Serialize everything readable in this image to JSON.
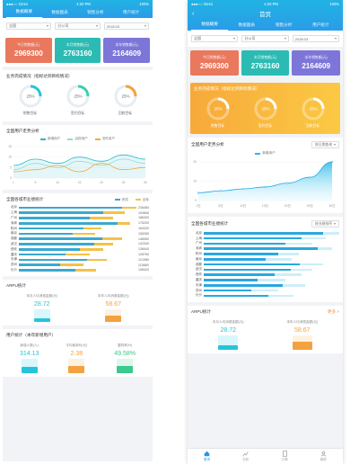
{
  "status": {
    "carrier": "●●●○○ Omni",
    "time": "4:20 PM",
    "battery": "100%"
  },
  "title": "首页",
  "tabs": [
    "数据概要",
    "数据图表",
    "销售分析",
    "用户统计"
  ],
  "filters": {
    "left": [
      "全国",
      "分公司",
      "2018.03"
    ],
    "right": [
      "全国",
      "分公司",
      "2018.03"
    ]
  },
  "cards": [
    {
      "label": "今日销售额(元)",
      "value": "2969300",
      "color": "#e9785d"
    },
    {
      "label": "本月销售额(元)",
      "value": "2763160",
      "color": "#2cbbb3"
    },
    {
      "label": "本年销售额(元)",
      "value": "2164609",
      "color": "#7d76d8"
    }
  ],
  "rings_section": {
    "title": "业务完成情况（指标达到目标情况）",
    "items": [
      {
        "pct": "25%",
        "value": 25,
        "label": "销售目标",
        "color": "#29c3d9"
      },
      {
        "pct": "25%",
        "value": 25,
        "label": "签约目标",
        "color": "#3ad1b0"
      },
      {
        "pct": "25%",
        "value": 25,
        "label": "回款目标",
        "color": "#f5a13b"
      }
    ]
  },
  "trend_left": {
    "title": "全国用户走势分析",
    "legend": [
      "新增用户",
      "活跃用户",
      "流失用户"
    ],
    "legend_colors": [
      "#2ab9c7",
      "#8adfd9",
      "#f1a93d"
    ]
  },
  "trend_right": {
    "title": "全国用户走势分析",
    "pill": "按日期查询",
    "legend": "新增用户"
  },
  "chart_data": [
    {
      "type": "area",
      "x": [
        "1日",
        "5日",
        "10日",
        "15日",
        "20日",
        "25日",
        "30日"
      ],
      "series": [
        {
          "name": "新增用户",
          "values": [
            4,
            5,
            6,
            7,
            9,
            12,
            20
          ]
        }
      ],
      "ylim": [
        0,
        20
      ]
    },
    {
      "type": "line",
      "x": [
        "1",
        "5",
        "10",
        "15",
        "20",
        "25",
        "30"
      ],
      "series": [
        {
          "name": "新增用户",
          "values": [
            6,
            9,
            7,
            10,
            8,
            11,
            9
          ]
        },
        {
          "name": "活跃用户",
          "values": [
            4,
            7,
            5,
            8,
            6,
            9,
            7
          ]
        },
        {
          "name": "流失用户",
          "values": [
            3,
            4,
            6,
            3,
            7,
            4,
            5
          ]
        }
      ],
      "ylim": [
        0,
        15
      ]
    },
    {
      "type": "bar",
      "categories": [
        "北京",
        "上海",
        "广州",
        "深圳",
        "杭州",
        "南京",
        "成都",
        "武汉",
        "西安",
        "重庆",
        "天津",
        "苏州",
        "长沙"
      ],
      "series": [
        {
          "name": "完成",
          "values": [
            88,
            72,
            60,
            84,
            55,
            46,
            71,
            64,
            52,
            40,
            58,
            35,
            48
          ]
        },
        {
          "name": "目标",
          "values": [
            100,
            90,
            80,
            95,
            70,
            65,
            88,
            80,
            72,
            60,
            75,
            55,
            66
          ]
        }
      ]
    }
  ],
  "bars_left": {
    "title": "全国各城市业绩统计",
    "legend": [
      "完成",
      "目标"
    ],
    "values": [
      "236484",
      "193856",
      "186400",
      "175200",
      "164320",
      "155280",
      "148960",
      "142300",
      "136540",
      "128760",
      "121980",
      "115680",
      "108420"
    ]
  },
  "bars_right": {
    "title": "全国各城市业绩统计",
    "pill": "按业绩排序"
  },
  "gauge_section": {
    "title": "ARPU统计",
    "more": "更多 >",
    "items": [
      {
        "label": "本月人均消费金额(元)",
        "value": "28.72",
        "ratio": 0.3,
        "color": "#29c3d9",
        "bg": "#d9f6fb"
      },
      {
        "label": "本年人均消费金额(元)",
        "value": "58.67",
        "ratio": 0.55,
        "color": "#f3a23f",
        "bg": "#fdf1df"
      }
    ]
  },
  "bottom_section": {
    "title": "用户统计（本年新增用户）",
    "items": [
      {
        "label": "新增人数(人)",
        "value": "314.13",
        "color": "#29c3d9",
        "bg": "#d9f6fb",
        "ratio": 0.45
      },
      {
        "label": "平均客单价(元)",
        "value": "2.38",
        "color": "#f3a23f",
        "bg": "#fdf1df",
        "ratio": 0.5
      },
      {
        "label": "复购率(%)",
        "value": "49.58%",
        "color": "#3ac98e",
        "bg": "#def6ec",
        "ratio": 0.5
      }
    ]
  },
  "nav": [
    "首页",
    "分析",
    "订单",
    "我的"
  ]
}
